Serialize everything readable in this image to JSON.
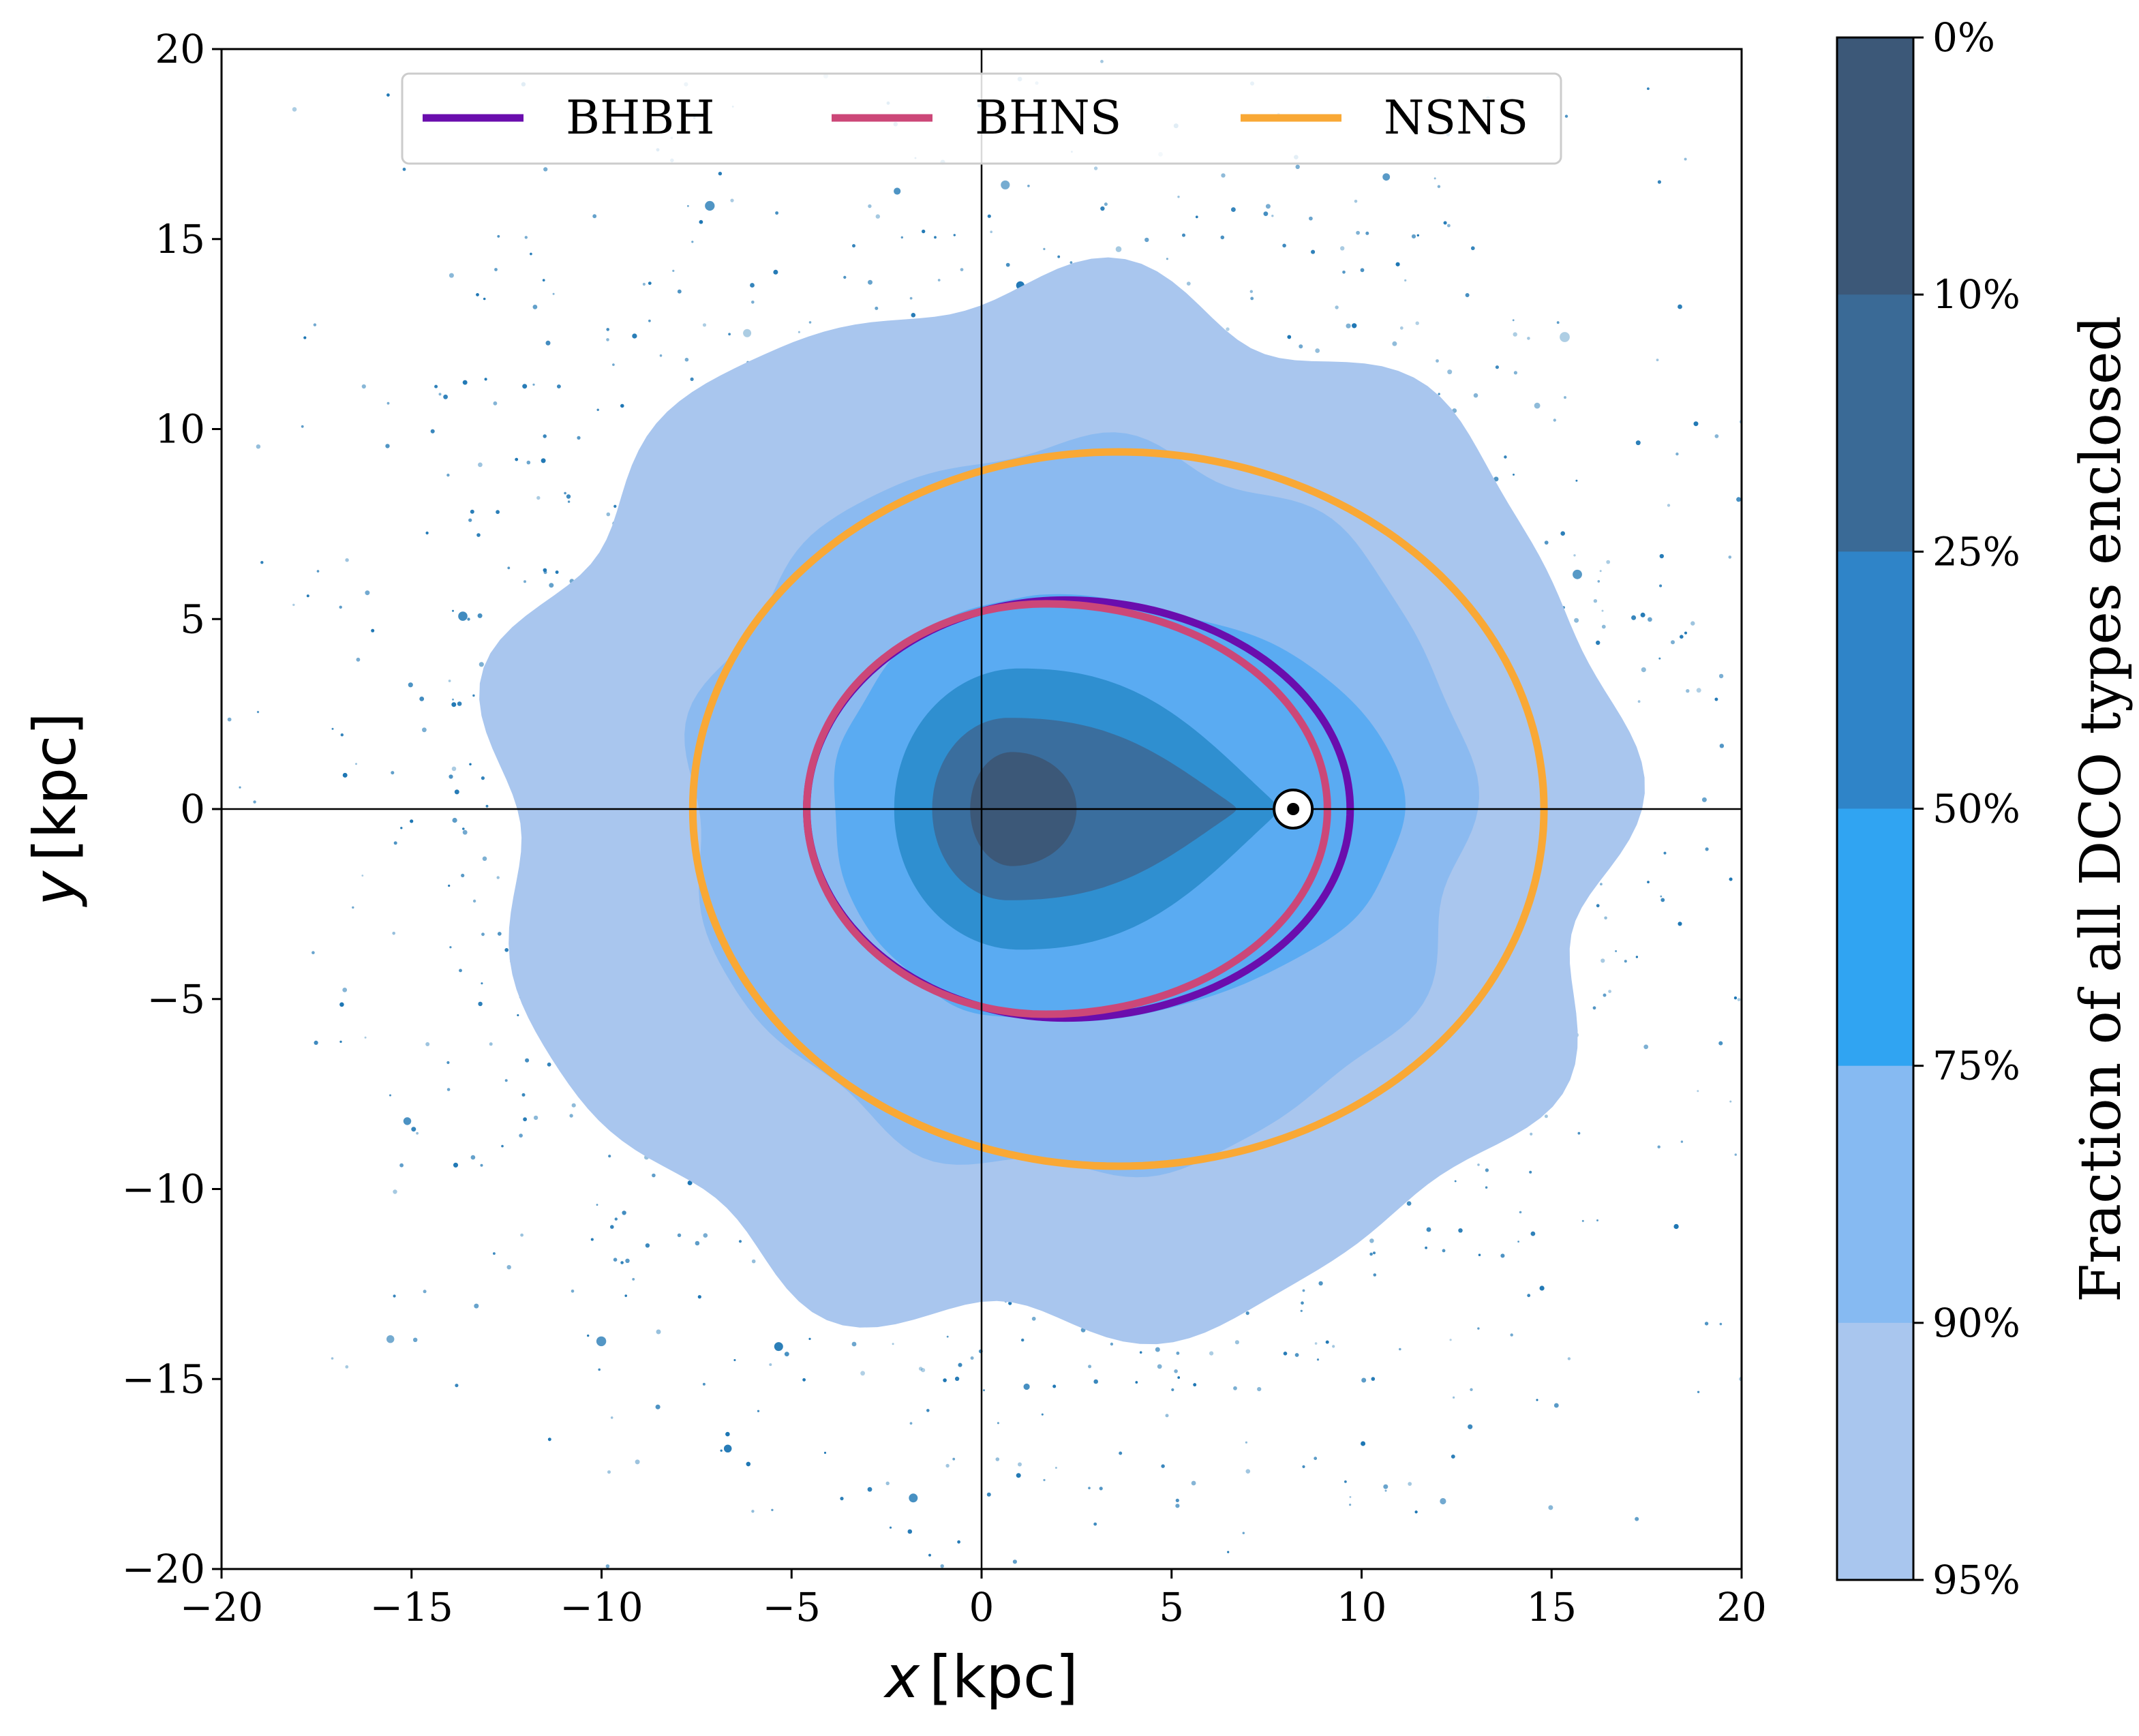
{
  "chart_data": {
    "type": "contour",
    "xlabel": {
      "var": "x",
      "unit": "[kpc]"
    },
    "ylabel": {
      "var": "y",
      "unit": "[kpc]"
    },
    "xlim": [
      -20,
      20
    ],
    "ylim": [
      -20,
      20
    ],
    "xticks": [
      -20,
      -15,
      -10,
      -5,
      0,
      5,
      10,
      15,
      20
    ],
    "yticks": [
      -20,
      -15,
      -10,
      -5,
      0,
      5,
      10,
      15,
      20
    ],
    "xtick_labels": [
      "−20",
      "−15",
      "−10",
      "−5",
      "0",
      "5",
      "10",
      "15",
      "20"
    ],
    "ytick_labels": [
      "−20",
      "−15",
      "−10",
      "−5",
      "0",
      "5",
      "10",
      "15",
      "20"
    ],
    "crosshair": {
      "x": 0,
      "y": 0
    },
    "sun_marker": {
      "x": 8.2,
      "y": 0.0
    },
    "scatter_color": "#1f77b4",
    "filled_levels": [
      {
        "enclosed_max": 0.95,
        "color": "#a9c6ee",
        "shape": {
          "cx": 2.0,
          "cy": 0.0,
          "rx_left": 14.8,
          "rx_right": 14.8,
          "ry": 13.8,
          "wobble": 0.55
        }
      },
      {
        "enclosed_max": 0.9,
        "color": "#8bbaf0",
        "shape": {
          "cx": 2.6,
          "cy": 0.0,
          "rx_left": 10.3,
          "rx_right": 10.2,
          "ry": 9.6,
          "wobble": 0.25
        }
      },
      {
        "enclosed_max": 0.75,
        "color": "#5aabf2",
        "shape": {
          "cx": 1.5,
          "cy": 0.0,
          "rx_left": 5.4,
          "rx_right": 9.6,
          "ry": 5.6,
          "wobble": 0.05
        }
      },
      {
        "enclosed_max": 0.5,
        "color": "#2f8fd0",
        "shape": {
          "cx": 1.0,
          "cy": 0.0,
          "rx_left": 3.3,
          "rx_right": 6.8,
          "ry": 3.7,
          "wobble": 0.0,
          "tail": true
        }
      },
      {
        "enclosed_max": 0.25,
        "color": "#3a6e9e",
        "shape": {
          "cx": 0.7,
          "cy": 0.0,
          "rx_left": 2.0,
          "rx_right": 6.0,
          "ry": 2.4,
          "wobble": 0.0,
          "tail": true
        }
      },
      {
        "enclosed_max": 0.1,
        "color": "#3c5878",
        "shape": {
          "cx": 0.8,
          "cy": 0.0,
          "rx_left": 1.1,
          "rx_right": 1.7,
          "ry": 1.5,
          "wobble": 0.0
        }
      }
    ],
    "series": [
      {
        "name": "BHBH",
        "color": "#6a0dad",
        "shape": {
          "cx": 2.2,
          "cy": 0.0,
          "rx_left": 6.8,
          "rx_right": 7.5,
          "ry": 5.5
        }
      },
      {
        "name": "BHNS",
        "color": "#cc4778",
        "shape": {
          "cx": 1.7,
          "cy": 0.0,
          "rx_left": 6.3,
          "rx_right": 7.4,
          "ry": 5.4
        }
      },
      {
        "name": "NSNS",
        "color": "#f9a835",
        "shape": {
          "cx": 3.6,
          "cy": 0.0,
          "rx_left": 11.2,
          "rx_right": 11.2,
          "ry": 9.4
        }
      }
    ],
    "colorbar": {
      "label": "Fraction of all DCO types enclosed",
      "ticks": [
        "0%",
        "10%",
        "25%",
        "50%",
        "75%",
        "90%",
        "95%"
      ],
      "colors_top_to_bottom": [
        "#3c5878",
        "#3a6a96",
        "#2f84c8",
        "#30a4f2",
        "#86baf2",
        "#a9c6ee"
      ]
    }
  }
}
